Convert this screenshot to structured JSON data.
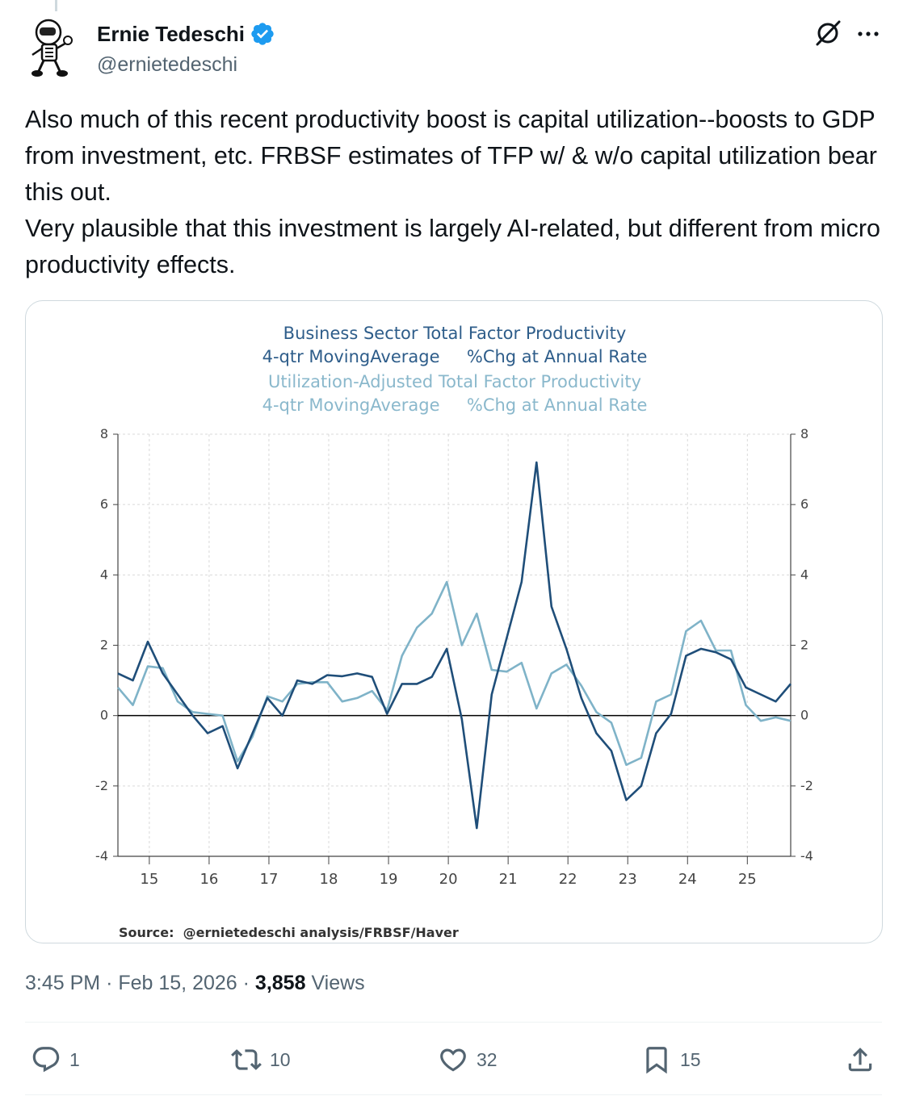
{
  "author": {
    "name": "Ernie Tedeschi",
    "handle": "@ernietedeschi",
    "verified": true
  },
  "tweet": {
    "line1": "Also much of this recent productivity boost is capital utilization--boosts to GDP from investment, etc. FRBSF estimates of TFP w/ & w/o capital utilization bear this out.",
    "line2": "Very plausible that this investment is largely AI-related, but different from micro productivity effects."
  },
  "chart_data": {
    "type": "line",
    "title_lines": [
      "Business Sector Total Factor Productivity",
      "4-qtr MovingAverage     %Chg at Annual Rate",
      "Utilization-Adjusted Total Factor Productivity",
      "4-qtr MovingAverage     %Chg at Annual Rate"
    ],
    "source": "Source:  @ernietedeschi analysis/FRBSF/Haver",
    "x_labels": [
      "15",
      "16",
      "17",
      "18",
      "19",
      "20",
      "21",
      "22",
      "23",
      "24",
      "25"
    ],
    "y_ticks": [
      "8",
      "6",
      "4",
      "2",
      "0",
      "-2",
      "-4"
    ],
    "ylim": [
      -4,
      8
    ],
    "x_start": 2014.0,
    "colors": {
      "tfp": "#1f4e79",
      "util_adj": "#7fb3c8",
      "title_dark": "#2e5d8a",
      "title_light": "#8ab8cc"
    },
    "series": [
      {
        "name": "Business Sector Total Factor Productivity",
        "key": "tfp",
        "values": [
          1.2,
          1.0,
          2.1,
          1.2,
          0.6,
          0.0,
          -0.5,
          -0.3,
          -1.5,
          -0.5,
          0.5,
          0.0,
          1.0,
          0.9,
          1.15,
          1.12,
          1.2,
          1.1,
          0.05,
          0.9,
          0.9,
          1.1,
          1.9,
          -0.1,
          -3.2,
          0.6,
          2.2,
          3.8,
          7.2,
          3.1,
          1.9,
          0.5,
          -0.5,
          -1.0,
          -2.4,
          -2.0,
          -0.5,
          0.05,
          1.7,
          1.9,
          1.8,
          1.6,
          0.8,
          0.6,
          0.4,
          0.9
        ]
      },
      {
        "name": "Utilization-Adjusted Total Factor Productivity",
        "key": "util_adj",
        "values": [
          0.8,
          0.3,
          1.4,
          1.35,
          0.4,
          0.1,
          0.05,
          0.0,
          -1.3,
          -0.6,
          0.55,
          0.4,
          0.9,
          0.95,
          0.95,
          0.4,
          0.5,
          0.7,
          0.15,
          1.7,
          2.5,
          2.9,
          3.8,
          2.0,
          2.9,
          1.3,
          1.25,
          1.5,
          0.2,
          1.2,
          1.45,
          0.85,
          0.1,
          -0.2,
          -1.4,
          -1.2,
          0.4,
          0.6,
          2.4,
          2.7,
          1.85,
          1.85,
          0.3,
          -0.15,
          -0.05,
          -0.15
        ]
      }
    ]
  },
  "meta": {
    "time": "3:45 PM",
    "sep": "·",
    "date": "Feb 15, 2026",
    "views_count": "3,858",
    "views_label": "Views"
  },
  "actions": {
    "replies": "1",
    "reposts": "10",
    "likes": "32",
    "bookmarks": "15"
  }
}
